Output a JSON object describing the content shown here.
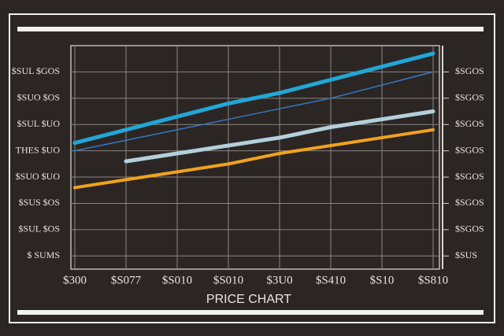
{
  "chart_data": {
    "type": "line",
    "title": "PRICE CHART",
    "categories": [
      "$300",
      "$S077",
      "$S010",
      "$S010",
      "$3U0",
      "$S410",
      "$S10",
      "$S810"
    ],
    "series": [
      {
        "color": "#22a6d6",
        "width": 5,
        "values": [
          4.3,
          4.8,
          5.3,
          5.8,
          6.2,
          6.7,
          7.2,
          7.7
        ]
      },
      {
        "color": "#3478c4",
        "width": 1.5,
        "values": [
          4.0,
          4.4,
          4.8,
          5.2,
          5.6,
          6.0,
          6.5,
          7.0
        ]
      },
      {
        "color": "#b4cfdc",
        "width": 5,
        "values": [
          null,
          3.6,
          3.9,
          4.2,
          4.5,
          4.9,
          5.2,
          5.5
        ]
      },
      {
        "color": "#f0a21e",
        "width": 4,
        "values": [
          2.6,
          2.9,
          3.2,
          3.5,
          3.9,
          4.2,
          4.5,
          4.8
        ]
      }
    ],
    "ylim": [
      -0.5,
      8
    ],
    "yticks": [
      {
        "value": 7,
        "label": "$SUL $GOS"
      },
      {
        "value": 6,
        "label": "$SUO $OS"
      },
      {
        "value": 5,
        "label": "$SUL $UO"
      },
      {
        "value": 4,
        "label": "THES $UO"
      },
      {
        "value": 3,
        "label": "$SUO $UO"
      },
      {
        "value": 2,
        "label": "$SUS $OS"
      },
      {
        "value": 1,
        "label": "$SUL $OS"
      },
      {
        "value": 0,
        "label": "$ SUMS"
      }
    ],
    "y2lim": [
      -0.5,
      8
    ],
    "y2ticks": [
      {
        "value": 7,
        "label": "$SGOS"
      },
      {
        "value": 6,
        "label": "$SGOS"
      },
      {
        "value": 5,
        "label": "$SGOS"
      },
      {
        "value": 4,
        "label": "$SGOS"
      },
      {
        "value": 3,
        "label": "$SGOS"
      },
      {
        "value": 2,
        "label": "$SGOS"
      },
      {
        "value": 1,
        "label": "$SGOS"
      },
      {
        "value": 0,
        "label": "$SUS"
      }
    ],
    "grid": true
  }
}
